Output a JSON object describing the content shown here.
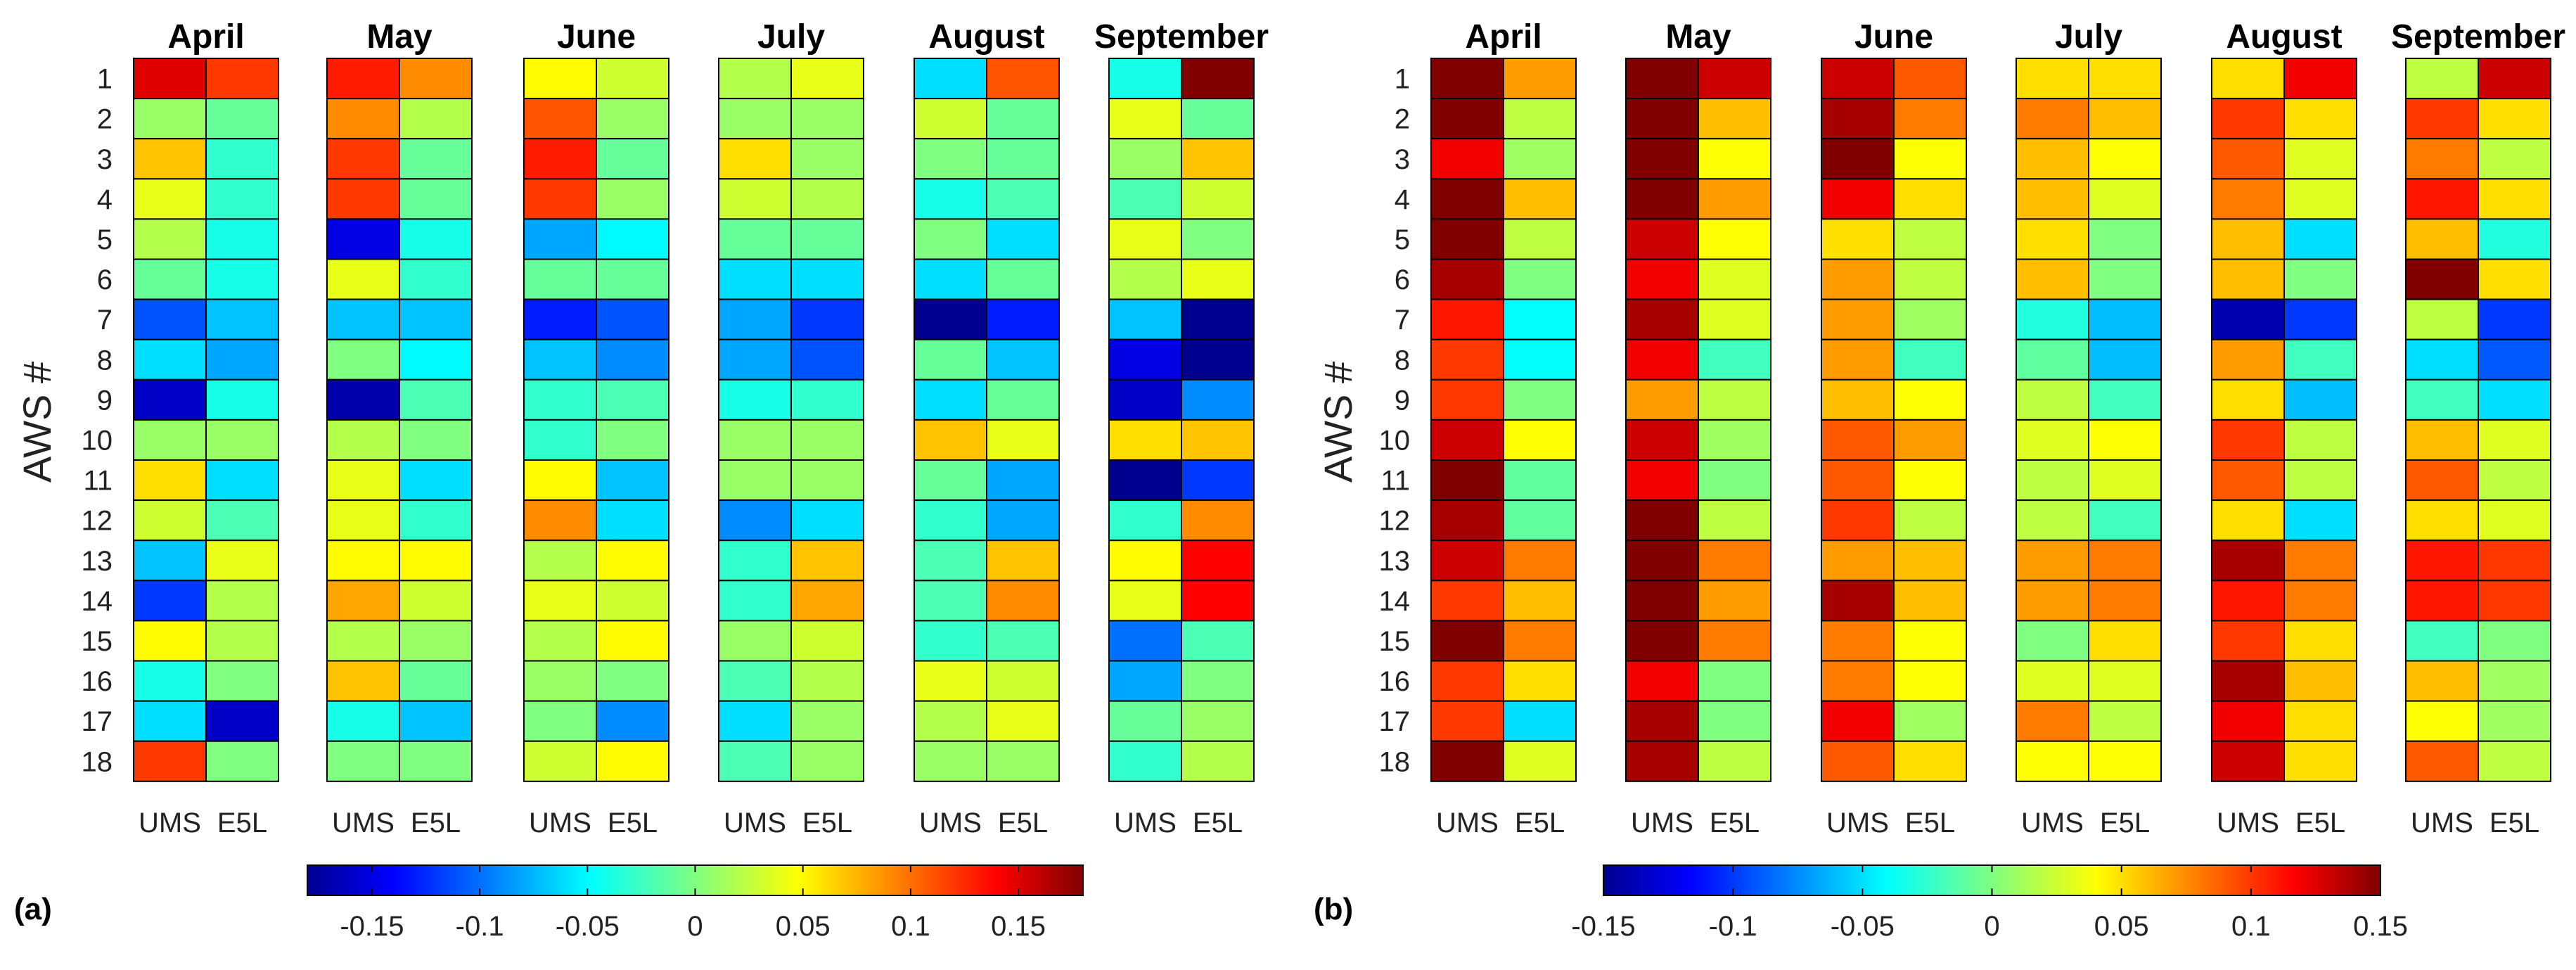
{
  "chart_data": [
    {
      "type": "heatmap",
      "panel_label": "(a)",
      "ylabel": "AWS #",
      "rows": [
        "1",
        "2",
        "3",
        "4",
        "5",
        "6",
        "7",
        "8",
        "9",
        "10",
        "11",
        "12",
        "13",
        "14",
        "15",
        "16",
        "17",
        "18"
      ],
      "columns": [
        "UMS",
        "E5L"
      ],
      "months": [
        {
          "name": "April",
          "UMS": [
            0.15,
            0.01,
            0.07,
            0.04,
            0.02,
            -0.01,
            -0.11,
            -0.06,
            -0.16,
            0.01,
            0.06,
            0.03,
            -0.07,
            -0.12,
            0.05,
            -0.04,
            -0.06,
            0.12
          ],
          "E5L": [
            0.12,
            -0.01,
            -0.03,
            -0.03,
            -0.04,
            -0.04,
            -0.07,
            -0.08,
            -0.04,
            0.01,
            -0.06,
            -0.02,
            0.04,
            0.02,
            0.02,
            0.0,
            -0.16,
            0.0
          ]
        },
        {
          "name": "May",
          "UMS": [
            0.13,
            0.09,
            0.12,
            0.12,
            -0.15,
            0.04,
            -0.07,
            0.0,
            -0.17,
            0.02,
            0.04,
            0.04,
            0.05,
            0.08,
            0.02,
            0.07,
            -0.04,
            0.0
          ],
          "E5L": [
            0.09,
            0.02,
            -0.01,
            -0.01,
            -0.04,
            -0.03,
            -0.07,
            -0.05,
            -0.02,
            0.0,
            -0.06,
            -0.03,
            0.05,
            0.03,
            0.01,
            -0.01,
            -0.07,
            0.0
          ]
        },
        {
          "name": "June",
          "UMS": [
            0.05,
            0.11,
            0.13,
            0.12,
            -0.08,
            -0.01,
            -0.13,
            -0.07,
            -0.03,
            -0.03,
            0.05,
            0.09,
            0.02,
            0.04,
            0.02,
            0.01,
            0.0,
            0.03
          ],
          "E5L": [
            0.03,
            0.01,
            -0.01,
            0.01,
            -0.05,
            -0.01,
            -0.11,
            -0.09,
            -0.02,
            0.0,
            -0.07,
            -0.06,
            0.05,
            0.03,
            0.05,
            0.0,
            -0.09,
            0.05
          ]
        },
        {
          "name": "July",
          "UMS": [
            0.02,
            0.01,
            0.06,
            0.03,
            -0.01,
            -0.06,
            -0.08,
            -0.08,
            -0.04,
            0.01,
            0.01,
            -0.09,
            -0.03,
            -0.03,
            0.01,
            -0.02,
            -0.06,
            -0.02
          ],
          "E5L": [
            0.04,
            0.01,
            0.01,
            0.02,
            -0.01,
            -0.06,
            -0.12,
            -0.11,
            -0.03,
            0.01,
            0.01,
            -0.06,
            0.07,
            0.08,
            0.03,
            0.02,
            0.01,
            0.01
          ]
        },
        {
          "name": "August",
          "UMS": [
            -0.06,
            0.03,
            0.0,
            -0.04,
            0.0,
            -0.06,
            -0.19,
            -0.01,
            -0.06,
            0.07,
            -0.01,
            -0.03,
            -0.02,
            -0.02,
            -0.03,
            0.04,
            0.02,
            0.01
          ],
          "E5L": [
            0.11,
            -0.01,
            -0.01,
            -0.02,
            -0.06,
            -0.01,
            -0.13,
            -0.07,
            -0.01,
            0.04,
            -0.08,
            -0.08,
            0.07,
            0.09,
            -0.02,
            0.03,
            0.04,
            0.01
          ]
        },
        {
          "name": "September",
          "UMS": [
            -0.04,
            0.04,
            0.01,
            -0.02,
            0.04,
            0.02,
            -0.07,
            -0.15,
            -0.16,
            0.06,
            -0.18,
            -0.03,
            0.05,
            0.04,
            -0.1,
            -0.08,
            -0.01,
            -0.03
          ],
          "E5L": [
            0.18,
            -0.01,
            0.07,
            0.03,
            0.0,
            0.04,
            -0.19,
            -0.18,
            -0.09,
            0.07,
            -0.12,
            0.09,
            0.14,
            0.14,
            -0.02,
            0.0,
            0.01,
            0.02
          ]
        }
      ],
      "colorbar": {
        "min": -0.18,
        "max": 0.18,
        "ticks": [
          -0.15,
          -0.1,
          -0.05,
          0,
          0.05,
          0.1,
          0.15
        ],
        "tick_labels": [
          "-0.15",
          "-0.1",
          "-0.05",
          "0",
          "0.05",
          "0.1",
          "0.15"
        ]
      }
    },
    {
      "type": "heatmap",
      "panel_label": "(b)",
      "ylabel": "AWS #",
      "rows": [
        "1",
        "2",
        "3",
        "4",
        "5",
        "6",
        "7",
        "8",
        "9",
        "10",
        "11",
        "12",
        "13",
        "14",
        "15",
        "16",
        "17",
        "18"
      ],
      "columns": [
        "UMS",
        "E5L"
      ],
      "months": [
        {
          "name": "April",
          "UMS": [
            0.15,
            0.15,
            0.12,
            0.15,
            0.15,
            0.14,
            0.11,
            0.1,
            0.1,
            0.13,
            0.15,
            0.14,
            0.13,
            0.1,
            0.15,
            0.1,
            0.1,
            0.15
          ],
          "E5L": [
            0.07,
            0.02,
            0.01,
            0.06,
            0.02,
            0.0,
            -0.04,
            -0.04,
            0.0,
            0.04,
            -0.01,
            -0.01,
            0.08,
            0.06,
            0.08,
            0.05,
            -0.05,
            0.03
          ]
        },
        {
          "name": "May",
          "UMS": [
            0.15,
            0.15,
            0.15,
            0.15,
            0.13,
            0.12,
            0.14,
            0.12,
            0.07,
            0.13,
            0.12,
            0.15,
            0.15,
            0.15,
            0.15,
            0.12,
            0.14,
            0.14
          ],
          "E5L": [
            0.13,
            0.06,
            0.04,
            0.07,
            0.04,
            0.03,
            0.03,
            -0.02,
            0.02,
            0.01,
            0.0,
            0.02,
            0.08,
            0.07,
            0.08,
            0.0,
            0.0,
            0.02
          ]
        },
        {
          "name": "June",
          "UMS": [
            0.13,
            0.14,
            0.15,
            0.12,
            0.05,
            0.07,
            0.07,
            0.07,
            0.06,
            0.09,
            0.09,
            0.1,
            0.07,
            0.14,
            0.08,
            0.08,
            0.12,
            0.09
          ],
          "E5L": [
            0.09,
            0.08,
            0.04,
            0.05,
            0.02,
            0.02,
            0.01,
            -0.02,
            0.04,
            0.07,
            0.04,
            0.02,
            0.06,
            0.06,
            0.04,
            0.04,
            0.01,
            0.05
          ]
        },
        {
          "name": "July",
          "UMS": [
            0.05,
            0.08,
            0.06,
            0.06,
            0.05,
            0.06,
            -0.03,
            -0.01,
            0.02,
            0.03,
            0.02,
            0.02,
            0.07,
            0.07,
            0.0,
            0.03,
            0.08,
            0.04
          ],
          "E5L": [
            0.05,
            0.06,
            0.04,
            0.03,
            0.0,
            0.0,
            -0.06,
            -0.06,
            -0.02,
            0.04,
            0.03,
            -0.02,
            0.08,
            0.08,
            0.05,
            0.03,
            0.02,
            0.04
          ]
        },
        {
          "name": "August",
          "UMS": [
            0.05,
            0.1,
            0.09,
            0.08,
            0.06,
            0.06,
            -0.14,
            0.07,
            0.05,
            0.1,
            0.09,
            0.05,
            0.14,
            0.11,
            0.1,
            0.14,
            0.12,
            0.13
          ],
          "E5L": [
            0.12,
            0.05,
            0.03,
            0.03,
            -0.05,
            0.0,
            -0.1,
            -0.02,
            -0.06,
            0.02,
            0.02,
            -0.05,
            0.08,
            0.08,
            0.05,
            0.06,
            0.05,
            0.05
          ]
        },
        {
          "name": "September",
          "UMS": [
            0.02,
            0.1,
            0.08,
            0.11,
            0.06,
            0.15,
            0.02,
            -0.05,
            -0.02,
            0.06,
            0.09,
            0.05,
            0.11,
            0.11,
            -0.02,
            0.06,
            0.04,
            0.09
          ],
          "E5L": [
            0.13,
            0.05,
            0.02,
            0.05,
            -0.03,
            0.05,
            -0.1,
            -0.09,
            -0.05,
            0.03,
            0.02,
            0.03,
            0.1,
            0.1,
            0.0,
            0.01,
            0.01,
            0.02
          ]
        }
      ],
      "colorbar": {
        "min": -0.15,
        "max": 0.15,
        "ticks": [
          -0.15,
          -0.1,
          -0.05,
          0,
          0.05,
          0.1,
          0.15
        ],
        "tick_labels": [
          "-0.15",
          "-0.1",
          "-0.05",
          "0",
          "0.05",
          "0.1",
          "0.15"
        ]
      }
    }
  ]
}
